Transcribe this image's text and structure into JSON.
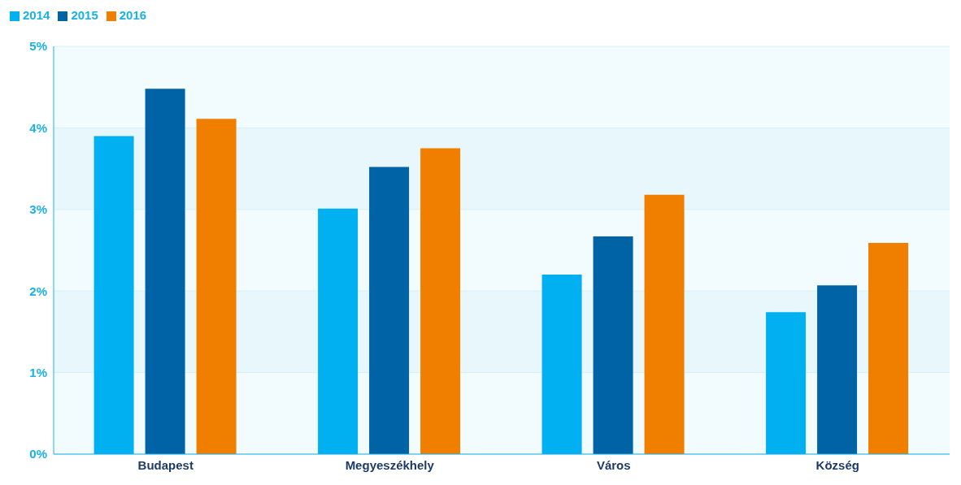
{
  "chart_data": {
    "type": "bar",
    "categories": [
      "Budapest",
      "Megyeszékhely",
      "Város",
      "Község"
    ],
    "series": [
      {
        "name": "2014",
        "color": "#00b0f0",
        "values": [
          3.9,
          3.01,
          2.2,
          1.74
        ]
      },
      {
        "name": "2015",
        "color": "#0063a6",
        "values": [
          4.48,
          3.52,
          2.67,
          2.07
        ]
      },
      {
        "name": "2016",
        "color": "#f07f00",
        "values": [
          4.11,
          3.75,
          3.18,
          2.59
        ]
      }
    ],
    "ylim": [
      0,
      5
    ],
    "yticks": [
      {
        "value": 0,
        "label": "0%"
      },
      {
        "value": 1,
        "label": "1%"
      },
      {
        "value": 2,
        "label": "2%"
      },
      {
        "value": 3,
        "label": "3%"
      },
      {
        "value": 4,
        "label": "4%"
      },
      {
        "value": 5,
        "label": "5%"
      }
    ],
    "grid": "y",
    "legend": "top left"
  }
}
